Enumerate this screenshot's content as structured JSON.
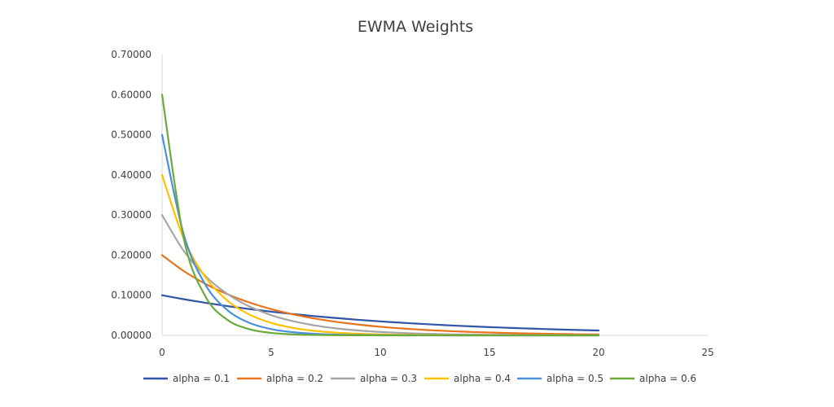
{
  "chart_data": {
    "type": "line",
    "title": "EWMA Weights",
    "xlabel": "",
    "ylabel": "",
    "xlim": [
      0,
      25
    ],
    "ylim": [
      0,
      0.7
    ],
    "x_ticks": [
      0,
      5,
      10,
      15,
      20,
      25
    ],
    "x_tick_labels": [
      "0",
      "5",
      "10",
      "15",
      "20",
      "25"
    ],
    "y_ticks": [
      0,
      0.1,
      0.2,
      0.3,
      0.4,
      0.5,
      0.6,
      0.7
    ],
    "y_tick_labels": [
      "0.00000",
      "0.10000",
      "0.20000",
      "0.30000",
      "0.40000",
      "0.50000",
      "0.60000",
      "0.70000"
    ],
    "grid": false,
    "legend_position": "bottom",
    "x": [
      0,
      1,
      2,
      3,
      4,
      5,
      6,
      7,
      8,
      9,
      10,
      11,
      12,
      13,
      14,
      15,
      16,
      17,
      18,
      19,
      20
    ],
    "series": [
      {
        "name": "alpha = 0.1",
        "color": "#2f55a4",
        "values": [
          0.1,
          0.09,
          0.081,
          0.0729,
          0.06561,
          0.05905,
          0.05314,
          0.04783,
          0.04305,
          0.03874,
          0.03487,
          0.03138,
          0.02824,
          0.02542,
          0.02288,
          0.02059,
          0.01853,
          0.01668,
          0.01501,
          0.01351,
          0.01216
        ]
      },
      {
        "name": "alpha = 0.2",
        "color": "#e8731c",
        "values": [
          0.2,
          0.16,
          0.128,
          0.1024,
          0.08192,
          0.06554,
          0.05243,
          0.04194,
          0.03355,
          0.02684,
          0.02147,
          0.01718,
          0.01374,
          0.011,
          0.0088,
          0.00704,
          0.00563,
          0.0045,
          0.0036,
          0.00288,
          0.00231
        ]
      },
      {
        "name": "alpha = 0.3",
        "color": "#a5a5a5",
        "values": [
          0.3,
          0.21,
          0.147,
          0.1029,
          0.07203,
          0.05042,
          0.03529,
          0.02471,
          0.01729,
          0.01211,
          0.00847,
          0.00593,
          0.00415,
          0.00291,
          0.00203,
          0.00142,
          0.001,
          0.0007,
          0.00049,
          0.00034,
          0.00024
        ]
      },
      {
        "name": "alpha = 0.4",
        "color": "#ffc000",
        "values": [
          0.4,
          0.24,
          0.144,
          0.0864,
          0.05184,
          0.0311,
          0.01866,
          0.0112,
          0.00672,
          0.00403,
          0.00242,
          0.00145,
          0.00087,
          0.00052,
          0.00031,
          0.00019,
          0.00011,
          7e-05,
          4e-05,
          3e-05,
          2e-05
        ]
      },
      {
        "name": "alpha = 0.5",
        "color": "#4a90d9",
        "values": [
          0.5,
          0.25,
          0.125,
          0.0625,
          0.03125,
          0.01563,
          0.00781,
          0.00391,
          0.00195,
          0.00098,
          0.00049,
          0.00024,
          0.00012,
          6e-05,
          3e-05,
          2e-05,
          1e-05,
          0.0,
          0.0,
          0.0,
          0.0
        ]
      },
      {
        "name": "alpha = 0.6",
        "color": "#6aaa3a",
        "values": [
          0.6,
          0.24,
          0.096,
          0.0384,
          0.01536,
          0.00614,
          0.00246,
          0.00098,
          0.00039,
          0.00016,
          6e-05,
          3e-05,
          1e-05,
          0.0,
          0.0,
          0.0,
          0.0,
          0.0,
          0.0,
          0.0,
          0.0
        ]
      }
    ]
  }
}
